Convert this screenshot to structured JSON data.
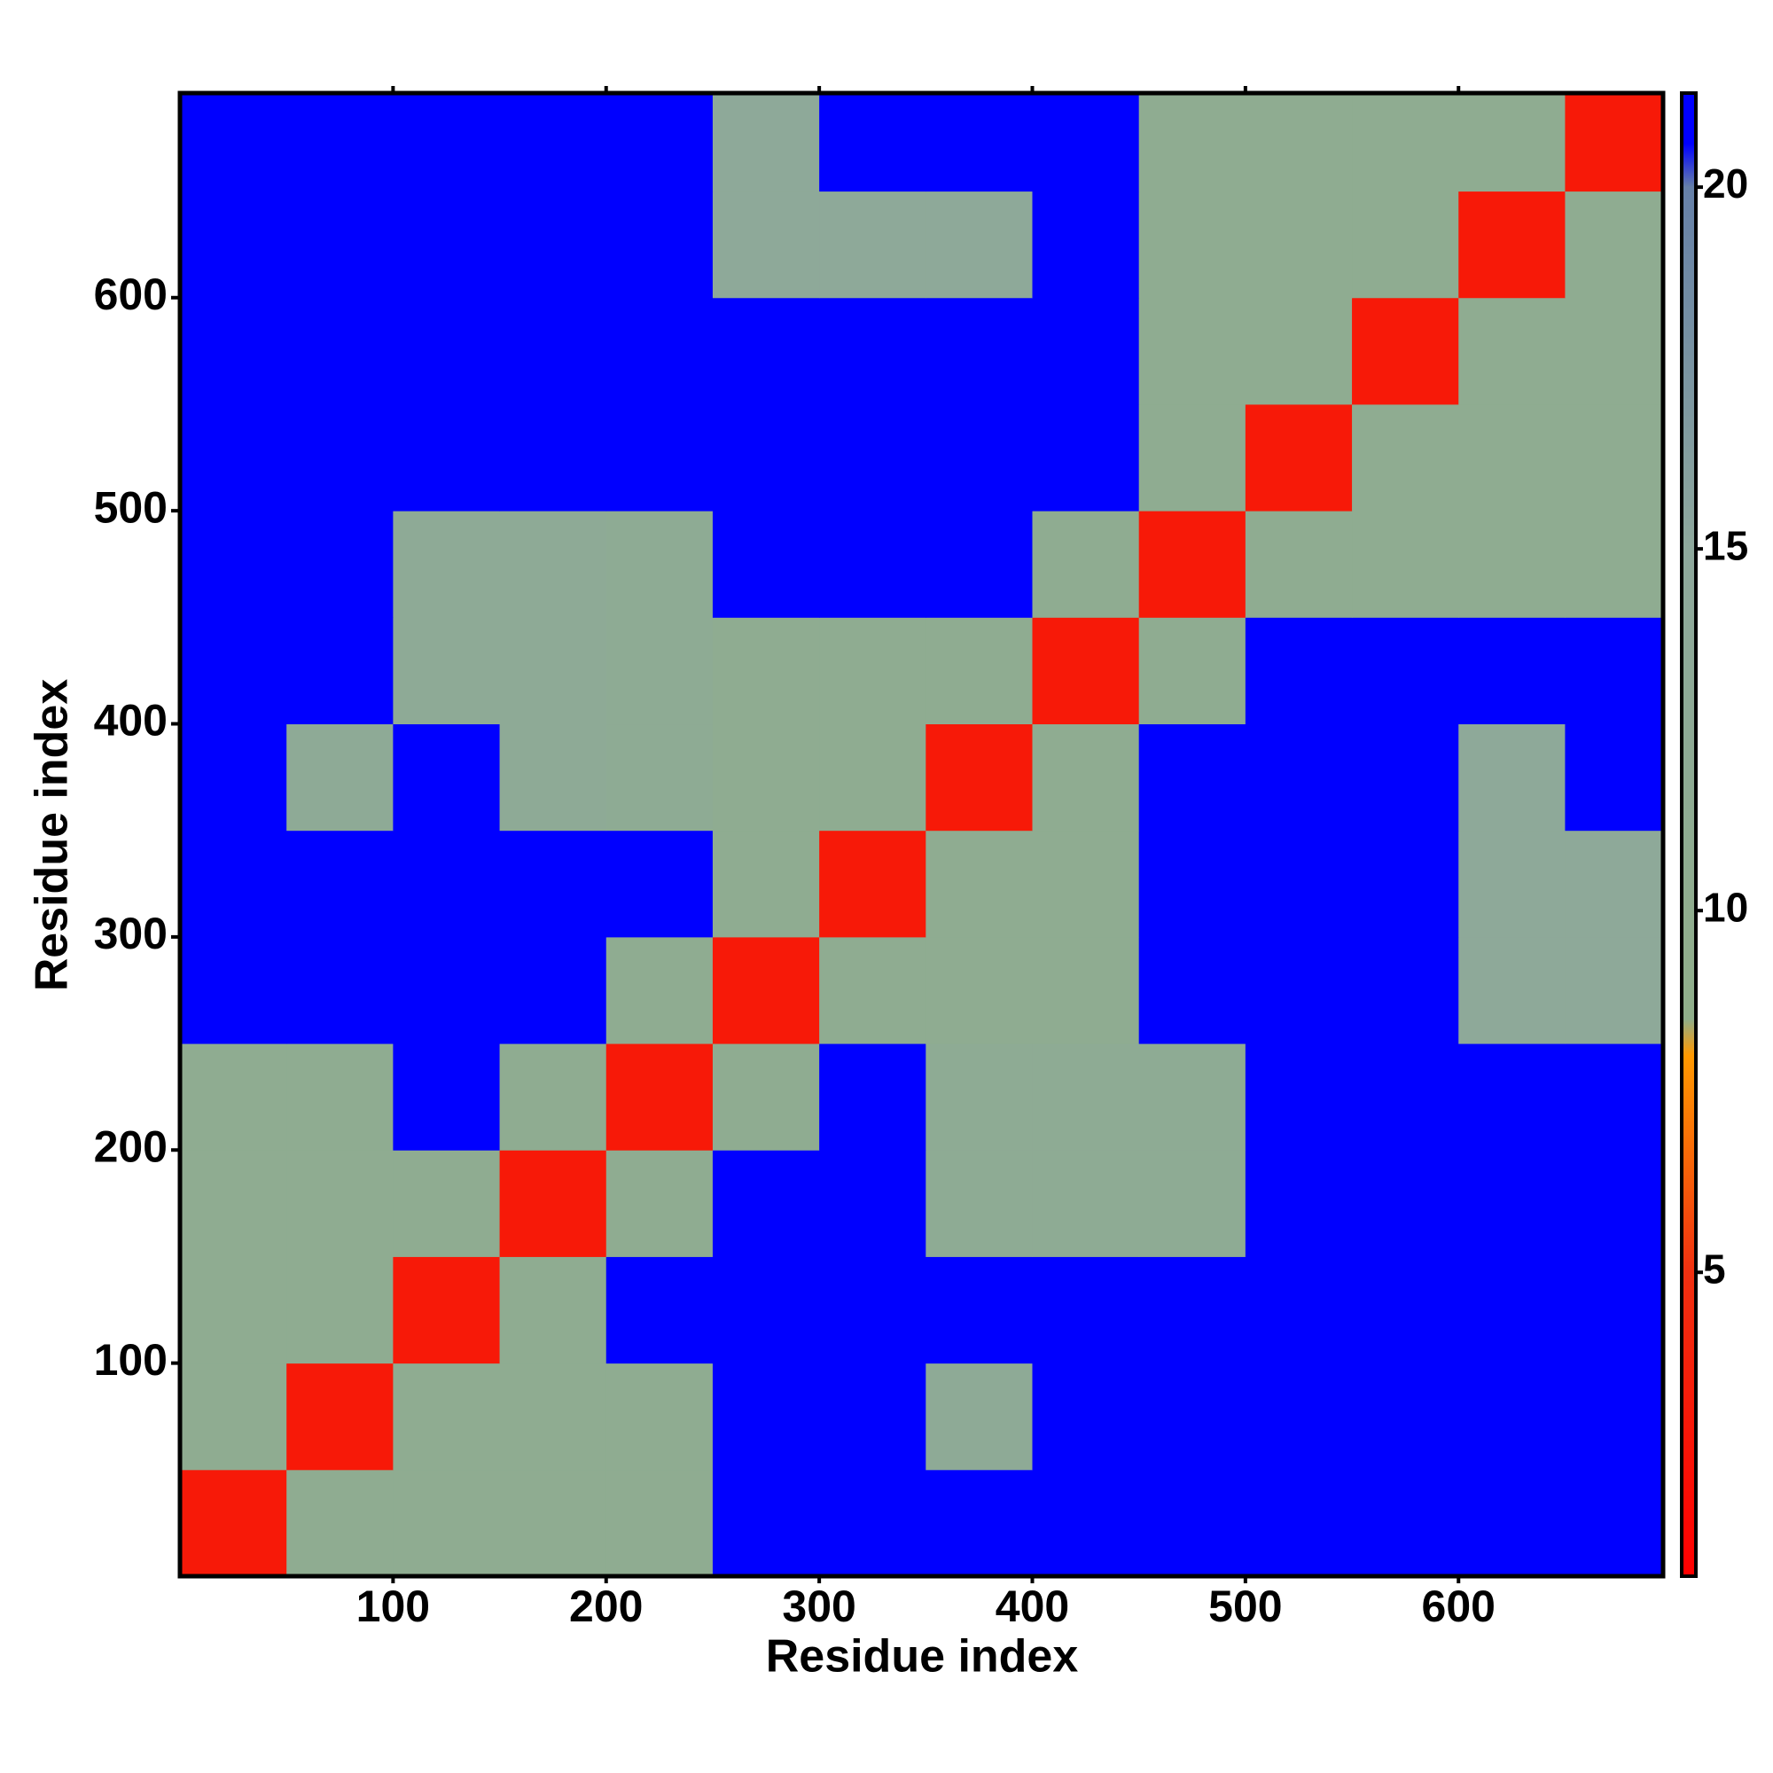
{
  "chart_data": {
    "type": "heatmap",
    "x_label": "Residue index",
    "y_label": "Residue index",
    "xlim": [
      0,
      696
    ],
    "ylim": [
      0,
      696
    ],
    "xticks": [
      100,
      200,
      300,
      400,
      500,
      600
    ],
    "yticks": [
      100,
      200,
      300,
      400,
      500,
      600
    ],
    "bins": [
      0,
      50,
      100,
      150,
      200,
      250,
      300,
      350,
      400,
      450,
      500,
      550,
      600,
      650,
      696
    ],
    "z": [
      [
        3,
        11,
        11,
        11,
        11,
        21,
        21,
        21,
        21,
        21,
        21,
        21,
        21,
        21
      ],
      [
        11,
        3,
        11,
        11,
        11,
        21,
        21,
        13,
        21,
        21,
        21,
        21,
        21,
        21
      ],
      [
        11,
        11,
        3,
        11,
        21,
        21,
        21,
        21,
        21,
        21,
        21,
        21,
        21,
        21
      ],
      [
        11,
        11,
        11,
        3,
        11,
        21,
        21,
        12,
        12,
        12,
        21,
        21,
        21,
        21
      ],
      [
        11,
        11,
        21,
        11,
        3,
        11,
        21,
        12,
        12,
        12,
        21,
        21,
        21,
        21
      ],
      [
        21,
        21,
        21,
        21,
        11,
        3,
        11,
        11,
        11,
        21,
        21,
        21,
        14,
        14
      ],
      [
        21,
        21,
        21,
        21,
        21,
        11,
        3,
        11,
        11,
        21,
        21,
        21,
        14,
        14
      ],
      [
        21,
        13,
        21,
        13,
        12,
        11,
        11,
        3,
        11,
        21,
        21,
        21,
        14,
        21
      ],
      [
        21,
        21,
        13,
        13,
        12,
        11,
        11,
        11,
        3,
        11,
        21,
        21,
        21,
        21
      ],
      [
        21,
        21,
        13,
        13,
        12,
        21,
        21,
        21,
        11,
        3,
        11,
        11,
        11,
        11
      ],
      [
        21,
        21,
        21,
        21,
        21,
        21,
        21,
        21,
        21,
        11,
        3,
        11,
        11,
        11
      ],
      [
        21,
        21,
        21,
        21,
        21,
        21,
        21,
        21,
        21,
        11,
        11,
        3,
        11,
        11
      ],
      [
        21,
        21,
        21,
        21,
        21,
        14,
        14,
        14,
        21,
        11,
        11,
        11,
        3,
        11
      ],
      [
        21,
        21,
        21,
        21,
        21,
        14,
        21,
        21,
        21,
        11,
        11,
        11,
        11,
        3
      ]
    ],
    "colorbar_lim": [
      0.8,
      21.3
    ],
    "colorbar_ticks": [
      5,
      10,
      15,
      20
    ],
    "colorscale": [
      [
        0.8,
        "#ff0000"
      ],
      [
        5,
        "#f03010"
      ],
      [
        8,
        "#ff9900"
      ],
      [
        8.5,
        "#8fae8a"
      ],
      [
        15,
        "#8ea89c"
      ],
      [
        20,
        "#6680a8"
      ],
      [
        20.6,
        "#0000ff"
      ],
      [
        21.3,
        "#0000ff"
      ]
    ]
  }
}
